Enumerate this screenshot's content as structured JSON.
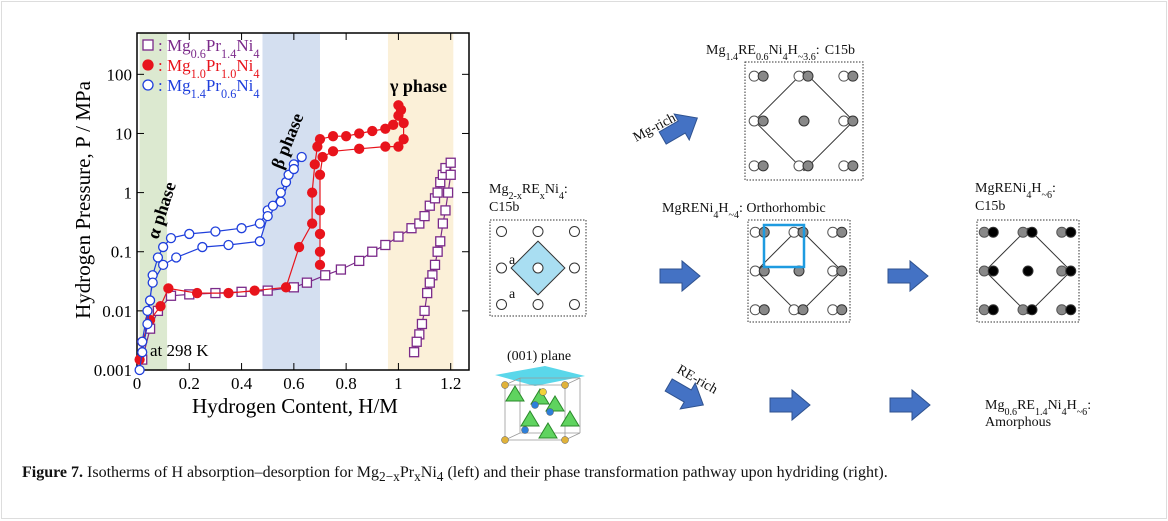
{
  "chart_data": {
    "type": "line",
    "x_label": "Hydrogen Content, H/M",
    "y_label": "Hydrogen Pressure, P / MPa",
    "xlim": [
      0,
      1.27
    ],
    "ylim": [
      0.001,
      500
    ],
    "y_scale": "log",
    "xticks": [
      0,
      0.2,
      0.4,
      0.6,
      0.8,
      1,
      1.2
    ],
    "yticks": [
      0.001,
      0.01,
      0.1,
      1,
      10,
      100
    ],
    "legend": "upper left",
    "bands": [
      {
        "x": [
          0.01,
          0.115
        ],
        "color": "#dce9d0"
      },
      {
        "x": [
          0.48,
          0.7
        ],
        "color": "#d4dff0"
      },
      {
        "x": [
          0.96,
          1.21
        ],
        "color": "#fbf0d8"
      }
    ],
    "annotations": [
      "α phase",
      "β phase",
      "γ phase",
      "at 298 K"
    ],
    "series": [
      {
        "name": ": Mg0.6Pr1.4Ni4",
        "color": "#7b2a8a",
        "marker": "square",
        "filled": false,
        "x": [
          0.02,
          0.05,
          0.08,
          0.13,
          0.2,
          0.3,
          0.4,
          0.5,
          0.6,
          0.65,
          0.72,
          0.78,
          0.85,
          0.9,
          0.95,
          1.0,
          1.05,
          1.08,
          1.1,
          1.12,
          1.14,
          1.15,
          1.16,
          1.17,
          1.18,
          1.2,
          1.2,
          1.19,
          1.18,
          1.17,
          1.16,
          1.15,
          1.14,
          1.13,
          1.12,
          1.11,
          1.1,
          1.09,
          1.08,
          1.07,
          1.06
        ],
        "values": [
          0.0015,
          0.005,
          0.01,
          0.018,
          0.019,
          0.02,
          0.021,
          0.022,
          0.025,
          0.03,
          0.04,
          0.05,
          0.07,
          0.1,
          0.13,
          0.18,
          0.25,
          0.3,
          0.4,
          0.6,
          0.8,
          1,
          1.5,
          2,
          2.6,
          3.2,
          2,
          1,
          0.5,
          0.3,
          0.15,
          0.1,
          0.06,
          0.04,
          0.03,
          0.02,
          0.01,
          0.006,
          0.004,
          0.003,
          0.002
        ]
      },
      {
        "name": ": Mg1.0Pr1.0Ni4",
        "color": "#e8141c",
        "marker": "circle",
        "filled": true,
        "x": [
          0.01,
          0.02,
          0.05,
          0.09,
          0.12,
          0.23,
          0.35,
          0.45,
          0.57,
          0.62,
          0.67,
          0.67,
          0.68,
          0.69,
          0.7,
          0.75,
          0.8,
          0.85,
          0.9,
          0.95,
          0.98,
          1.0,
          1.0,
          1.01,
          1.02,
          1.02,
          1.0,
          0.95,
          0.85,
          0.75,
          0.71,
          0.7,
          0.7,
          0.7,
          0.7,
          0.7
        ],
        "values": [
          0.0015,
          0.003,
          0.007,
          0.012,
          0.024,
          0.02,
          0.02,
          0.022,
          0.025,
          0.12,
          0.3,
          1,
          3,
          6,
          8,
          9,
          9,
          10,
          11,
          12,
          14,
          20,
          30,
          25,
          15,
          8,
          6,
          6,
          5.5,
          5,
          4,
          2,
          0.5,
          0.2,
          0.1,
          0.06
        ]
      },
      {
        "name": ": Mg1.4Pr0.6Ni4",
        "color": "#1f3fdc",
        "marker": "circle",
        "filled": false,
        "x": [
          0.01,
          0.02,
          0.04,
          0.05,
          0.06,
          0.08,
          0.1,
          0.13,
          0.2,
          0.3,
          0.4,
          0.47,
          0.5,
          0.52,
          0.55,
          0.57,
          0.58,
          0.6,
          0.63,
          0.6,
          0.55,
          0.5,
          0.47,
          0.35,
          0.25,
          0.15,
          0.1,
          0.06,
          0.04,
          0.02
        ],
        "values": [
          0.001,
          0.002,
          0.006,
          0.015,
          0.04,
          0.08,
          0.12,
          0.17,
          0.2,
          0.22,
          0.25,
          0.3,
          0.5,
          0.6,
          1,
          1.5,
          2,
          3,
          4,
          2.5,
          0.7,
          0.4,
          0.15,
          0.13,
          0.12,
          0.08,
          0.06,
          0.03,
          0.01,
          0.003
        ]
      }
    ]
  },
  "diagram": {
    "top": {
      "label": "Mg1.4RE0.6Ni4H~3.6:",
      "sublabel": "C15b"
    },
    "mg_rich": "Mg-rich",
    "start": {
      "label": "Mg2-xRExNi4:",
      "sublabel": "C15b",
      "lattice_a": [
        "a",
        "a"
      ],
      "plane": "(001) plane"
    },
    "ortho": {
      "label": "MgRENi4H~4: Orthorhombic"
    },
    "final": {
      "label": "MgRENi4H~6:",
      "sublabel": "C15b"
    },
    "re_rich": "RE-rich",
    "amorphous": {
      "label": "Mg0.6RE1.4Ni4H~6:",
      "sublabel": "Amorphous"
    }
  },
  "caption": {
    "label": "Figure 7.",
    "before": "Isotherms of H absorption–desorption for",
    "formula": "Mg2−xPrxNi4",
    "after": "(left) and their phase transformation pathway upon hydriding (right)."
  }
}
